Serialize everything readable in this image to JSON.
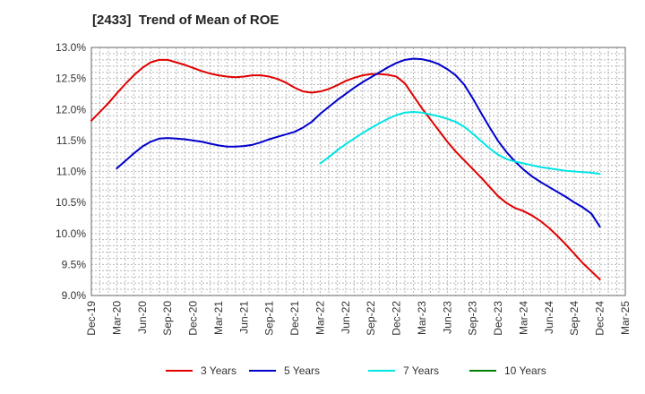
{
  "chart_data": {
    "type": "line",
    "title": "[2433]  Trend of Mean of ROE",
    "xlabel": "",
    "ylabel": "",
    "x_ticks": [
      "Dec-19",
      "Mar-20",
      "Jun-20",
      "Sep-20",
      "Dec-20",
      "Mar-21",
      "Jun-21",
      "Sep-21",
      "Dec-21",
      "Mar-22",
      "Jun-22",
      "Sep-22",
      "Dec-22",
      "Mar-23",
      "Jun-23",
      "Sep-23",
      "Dec-23",
      "Mar-24",
      "Jun-24",
      "Sep-24",
      "Dec-24",
      "Mar-25"
    ],
    "y_ticks": [
      "13.0%",
      "12.5%",
      "12.0%",
      "11.5%",
      "11.0%",
      "10.5%",
      "10.0%",
      "9.5%",
      "9.0%"
    ],
    "ylim": [
      9.0,
      13.0
    ],
    "grid": true,
    "legend_position": "bottom",
    "series": [
      {
        "name": "3 Years",
        "color": "#e00000",
        "points": [
          [
            "Dec-19",
            11.82
          ],
          [
            "Jan-20",
            11.96
          ],
          [
            "Feb-20",
            12.1
          ],
          [
            "Mar-20",
            12.26
          ],
          [
            "Apr-20",
            12.41
          ],
          [
            "May-20",
            12.55
          ],
          [
            "Jun-20",
            12.67
          ],
          [
            "Jul-20",
            12.76
          ],
          [
            "Aug-20",
            12.8
          ],
          [
            "Sep-20",
            12.8
          ],
          [
            "Oct-20",
            12.76
          ],
          [
            "Nov-20",
            12.72
          ],
          [
            "Dec-20",
            12.67
          ],
          [
            "Jan-21",
            12.62
          ],
          [
            "Feb-21",
            12.58
          ],
          [
            "Mar-21",
            12.55
          ],
          [
            "Apr-21",
            12.53
          ],
          [
            "May-21",
            12.52
          ],
          [
            "Jun-21",
            12.53
          ],
          [
            "Jul-21",
            12.55
          ],
          [
            "Aug-21",
            12.55
          ],
          [
            "Sep-21",
            12.53
          ],
          [
            "Oct-21",
            12.49
          ],
          [
            "Nov-21",
            12.43
          ],
          [
            "Dec-21",
            12.35
          ],
          [
            "Jan-22",
            12.29
          ],
          [
            "Feb-22",
            12.27
          ],
          [
            "Mar-22",
            12.29
          ],
          [
            "Apr-22",
            12.33
          ],
          [
            "May-22",
            12.39
          ],
          [
            "Jun-22",
            12.46
          ],
          [
            "Jul-22",
            12.51
          ],
          [
            "Aug-22",
            12.55
          ],
          [
            "Sep-22",
            12.57
          ],
          [
            "Oct-22",
            12.57
          ],
          [
            "Nov-22",
            12.56
          ],
          [
            "Dec-22",
            12.53
          ],
          [
            "Jan-23",
            12.42
          ],
          [
            "Feb-23",
            12.22
          ],
          [
            "Mar-23",
            12.02
          ],
          [
            "Apr-23",
            11.84
          ],
          [
            "May-23",
            11.66
          ],
          [
            "Jun-23",
            11.48
          ],
          [
            "Jul-23",
            11.32
          ],
          [
            "Aug-23",
            11.18
          ],
          [
            "Sep-23",
            11.04
          ],
          [
            "Oct-23",
            10.9
          ],
          [
            "Nov-23",
            10.75
          ],
          [
            "Dec-23",
            10.6
          ],
          [
            "Jan-24",
            10.49
          ],
          [
            "Feb-24",
            10.41
          ],
          [
            "Mar-24",
            10.36
          ],
          [
            "Apr-24",
            10.29
          ],
          [
            "May-24",
            10.2
          ],
          [
            "Jun-24",
            10.09
          ],
          [
            "Jul-24",
            9.96
          ],
          [
            "Aug-24",
            9.82
          ],
          [
            "Sep-24",
            9.67
          ],
          [
            "Oct-24",
            9.52
          ],
          [
            "Nov-24",
            9.39
          ],
          [
            "Dec-24",
            9.26
          ]
        ]
      },
      {
        "name": "5 Years",
        "color": "#0000cc",
        "points": [
          [
            "Mar-20",
            11.05
          ],
          [
            "Apr-20",
            11.17
          ],
          [
            "May-20",
            11.29
          ],
          [
            "Jun-20",
            11.4
          ],
          [
            "Jul-20",
            11.48
          ],
          [
            "Aug-20",
            11.53
          ],
          [
            "Sep-20",
            11.54
          ],
          [
            "Oct-20",
            11.53
          ],
          [
            "Nov-20",
            11.52
          ],
          [
            "Dec-20",
            11.5
          ],
          [
            "Jan-21",
            11.48
          ],
          [
            "Feb-21",
            11.45
          ],
          [
            "Mar-21",
            11.42
          ],
          [
            "Apr-21",
            11.4
          ],
          [
            "May-21",
            11.4
          ],
          [
            "Jun-21",
            11.41
          ],
          [
            "Jul-21",
            11.43
          ],
          [
            "Aug-21",
            11.47
          ],
          [
            "Sep-21",
            11.52
          ],
          [
            "Oct-21",
            11.56
          ],
          [
            "Nov-21",
            11.6
          ],
          [
            "Dec-21",
            11.64
          ],
          [
            "Jan-22",
            11.71
          ],
          [
            "Feb-22",
            11.8
          ],
          [
            "Mar-22",
            11.93
          ],
          [
            "Apr-22",
            12.04
          ],
          [
            "May-22",
            12.15
          ],
          [
            "Jun-22",
            12.25
          ],
          [
            "Jul-22",
            12.35
          ],
          [
            "Aug-22",
            12.44
          ],
          [
            "Sep-22",
            12.52
          ],
          [
            "Oct-22",
            12.6
          ],
          [
            "Nov-22",
            12.68
          ],
          [
            "Dec-22",
            12.75
          ],
          [
            "Jan-23",
            12.8
          ],
          [
            "Feb-23",
            12.82
          ],
          [
            "Mar-23",
            12.81
          ],
          [
            "Apr-23",
            12.78
          ],
          [
            "May-23",
            12.73
          ],
          [
            "Jun-23",
            12.65
          ],
          [
            "Jul-23",
            12.55
          ],
          [
            "Aug-23",
            12.4
          ],
          [
            "Sep-23",
            12.18
          ],
          [
            "Oct-23",
            11.94
          ],
          [
            "Nov-23",
            11.71
          ],
          [
            "Dec-23",
            11.49
          ],
          [
            "Jan-24",
            11.31
          ],
          [
            "Feb-24",
            11.16
          ],
          [
            "Mar-24",
            11.03
          ],
          [
            "Apr-24",
            10.92
          ],
          [
            "May-24",
            10.83
          ],
          [
            "Jun-24",
            10.75
          ],
          [
            "Jul-24",
            10.67
          ],
          [
            "Aug-24",
            10.59
          ],
          [
            "Sep-24",
            10.5
          ],
          [
            "Oct-24",
            10.42
          ],
          [
            "Nov-24",
            10.32
          ],
          [
            "Dec-24",
            10.11
          ]
        ]
      },
      {
        "name": "7 Years",
        "color": "#00e5e5",
        "points": [
          [
            "Mar-22",
            11.13
          ],
          [
            "Apr-22",
            11.23
          ],
          [
            "May-22",
            11.34
          ],
          [
            "Jun-22",
            11.44
          ],
          [
            "Jul-22",
            11.53
          ],
          [
            "Aug-22",
            11.62
          ],
          [
            "Sep-22",
            11.7
          ],
          [
            "Oct-22",
            11.78
          ],
          [
            "Nov-22",
            11.85
          ],
          [
            "Dec-22",
            11.91
          ],
          [
            "Jan-23",
            11.95
          ],
          [
            "Feb-23",
            11.96
          ],
          [
            "Mar-23",
            11.95
          ],
          [
            "Apr-23",
            11.92
          ],
          [
            "May-23",
            11.89
          ],
          [
            "Jun-23",
            11.85
          ],
          [
            "Jul-23",
            11.8
          ],
          [
            "Aug-23",
            11.72
          ],
          [
            "Sep-23",
            11.61
          ],
          [
            "Oct-23",
            11.49
          ],
          [
            "Nov-23",
            11.37
          ],
          [
            "Dec-23",
            11.27
          ],
          [
            "Jan-24",
            11.2
          ],
          [
            "Feb-24",
            11.16
          ],
          [
            "Mar-24",
            11.13
          ],
          [
            "Apr-24",
            11.1
          ],
          [
            "May-24",
            11.07
          ],
          [
            "Jun-24",
            11.05
          ],
          [
            "Jul-24",
            11.03
          ],
          [
            "Aug-24",
            11.01
          ],
          [
            "Sep-24",
            11.0
          ],
          [
            "Oct-24",
            10.99
          ],
          [
            "Nov-24",
            10.98
          ],
          [
            "Dec-24",
            10.96
          ]
        ]
      },
      {
        "name": "10 Years",
        "color": "#008000",
        "points": []
      }
    ]
  }
}
